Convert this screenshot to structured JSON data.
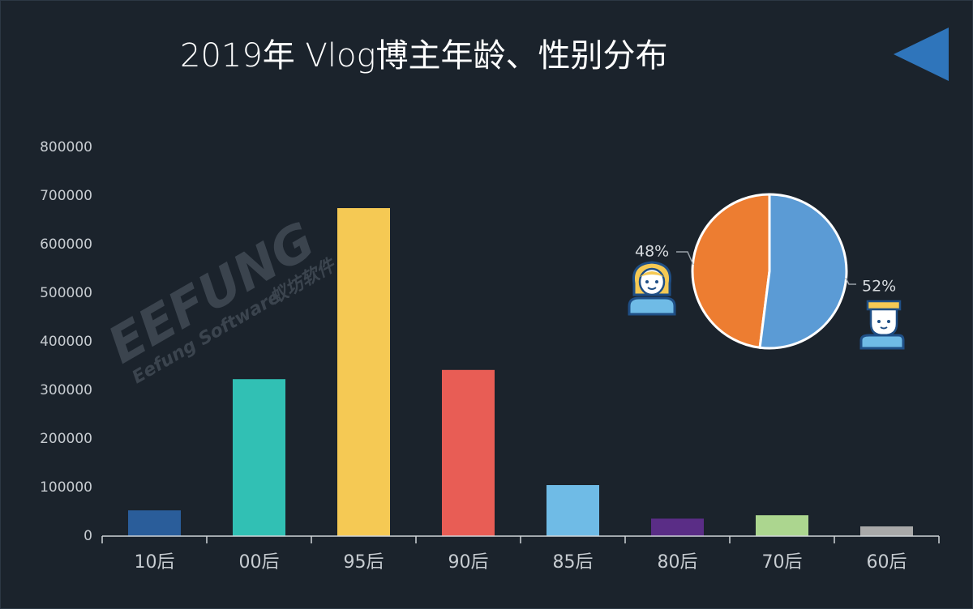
{
  "title": "2019年 Vlog博主年龄、性别分布",
  "watermark": {
    "brand": "EEFUNG",
    "sub": "Eefung Software",
    "cn": "蚁坊软件"
  },
  "icons": {
    "back": "back-arrow-icon",
    "female": "female-avatar-icon",
    "male": "male-avatar-icon"
  },
  "chart_data": [
    {
      "type": "bar",
      "categories": [
        "10后",
        "00后",
        "95后",
        "90后",
        "85后",
        "80后",
        "70后",
        "60后"
      ],
      "values": [
        53000,
        323000,
        675000,
        342000,
        105000,
        36000,
        43000,
        20000
      ],
      "colors": [
        "#2a5d9a",
        "#31c0b4",
        "#f5c954",
        "#e85d55",
        "#6fbbe6",
        "#5a2d86",
        "#acd68f",
        "#a9a9a9"
      ],
      "ylim": [
        0,
        800000
      ],
      "yticks": [
        "0",
        "100000",
        "200000",
        "300000",
        "400000",
        "500000",
        "600000",
        "700000",
        "800000"
      ],
      "grid": false
    },
    {
      "type": "pie",
      "labels": [
        "48%",
        "52%"
      ],
      "values": [
        48,
        52
      ],
      "colors": [
        "#ed7d31",
        "#5b9bd5"
      ]
    }
  ]
}
